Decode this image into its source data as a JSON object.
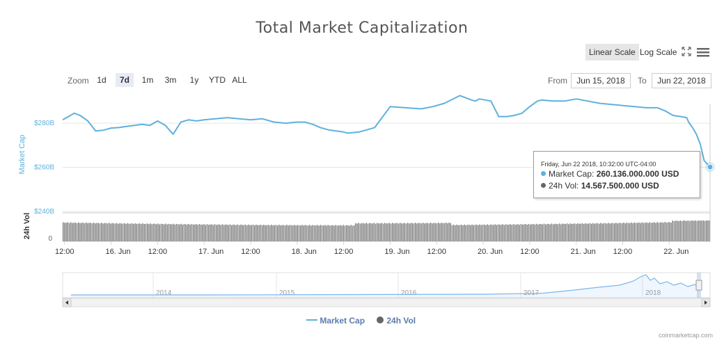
{
  "title": "Total Market Capitalization",
  "scale_buttons": {
    "linear": "Linear Scale",
    "log": "Log Scale",
    "active": "linear"
  },
  "zoom": {
    "label": "Zoom",
    "buttons": [
      "1d",
      "7d",
      "1m",
      "3m",
      "1y",
      "YTD",
      "ALL"
    ],
    "active": "7d"
  },
  "range": {
    "from_label": "From",
    "from_value": "Jun 15, 2018",
    "to_label": "To",
    "to_value": "Jun 22, 2018"
  },
  "tooltip": {
    "date": "Friday, Jun 22 2018, 10:32:00 UTC-04:00",
    "market_cap_label": "Market Cap:",
    "market_cap_value": "260.136.000.000 USD",
    "vol_label": "24h Vol:",
    "vol_value": "14.567.500.000 USD"
  },
  "legend": {
    "market_cap": "Market Cap",
    "vol": "24h Vol"
  },
  "credits": "coinmarketcap.com",
  "colors": {
    "market_cap": "#5eb1dd",
    "vol": "#666666",
    "navigator_line": "#7cb5ec",
    "grid": "#e6e6e6"
  },
  "icons": {
    "fullscreen": "fullscreen-icon",
    "menu": "hamburger-menu-icon"
  },
  "chart_data": {
    "type": "line",
    "title": "Total Market Capitalization",
    "x_start": "2018-06-15T11:30",
    "x_end": "2018-06-22T10:32",
    "x_ticks": [
      "12:00",
      "16. Jun",
      "12:00",
      "17. Jun",
      "12:00",
      "18. Jun",
      "12:00",
      "19. Jun",
      "12:00",
      "20. Jun",
      "12:00",
      "21. Jun",
      "12:00",
      "22. Jun"
    ],
    "y_axis": {
      "label": "Market Cap",
      "ticks": [
        "$240B",
        "$260B",
        "$280B"
      ],
      "ylim": [
        240,
        292
      ],
      "unit": "B USD"
    },
    "vol_axis": {
      "label": "24h Vol",
      "ticks": [
        "0"
      ]
    },
    "series": [
      {
        "name": "Market Cap",
        "x": [
          "2018-06-15T11:30",
          "2018-06-15T13:00",
          "2018-06-15T14:30",
          "2018-06-15T16:00",
          "2018-06-15T18:00",
          "2018-06-15T20:00",
          "2018-06-15T22:00",
          "2018-06-16T00:00",
          "2018-06-16T02:00",
          "2018-06-16T04:00",
          "2018-06-16T06:00",
          "2018-06-16T08:00",
          "2018-06-16T10:00",
          "2018-06-16T12:00",
          "2018-06-16T14:00",
          "2018-06-16T16:00",
          "2018-06-16T18:00",
          "2018-06-16T20:00",
          "2018-06-16T22:00",
          "2018-06-17T00:00",
          "2018-06-17T03:00",
          "2018-06-17T06:00",
          "2018-06-17T09:00",
          "2018-06-17T12:00",
          "2018-06-17T15:00",
          "2018-06-17T18:00",
          "2018-06-17T21:00",
          "2018-06-18T00:00",
          "2018-06-18T02:00",
          "2018-06-18T04:00",
          "2018-06-18T06:00",
          "2018-06-18T08:00",
          "2018-06-18T10:00",
          "2018-06-18T12:00",
          "2018-06-18T13:00",
          "2018-06-18T16:00",
          "2018-06-18T20:00",
          "2018-06-19T00:00",
          "2018-06-19T04:00",
          "2018-06-19T08:00",
          "2018-06-19T09:00",
          "2018-06-19T11:00",
          "2018-06-19T14:00",
          "2018-06-19T18:00",
          "2018-06-19T21:00",
          "2018-06-19T22:00",
          "2018-06-19T23:00",
          "2018-06-20T02:00",
          "2018-06-20T04:00",
          "2018-06-20T06:00",
          "2018-06-20T08:00",
          "2018-06-20T10:00",
          "2018-06-20T12:00",
          "2018-06-20T14:00",
          "2018-06-20T15:00",
          "2018-06-20T18:00",
          "2018-06-20T21:00",
          "2018-06-21T00:00",
          "2018-06-21T03:00",
          "2018-06-21T06:00",
          "2018-06-21T09:00",
          "2018-06-21T12:00",
          "2018-06-21T15:00",
          "2018-06-21T18:00",
          "2018-06-21T21:00",
          "2018-06-21T23:00",
          "2018-06-22T01:00",
          "2018-06-22T03:00",
          "2018-06-22T04:30",
          "2018-06-22T05:00",
          "2018-06-22T06:00",
          "2018-06-22T07:00",
          "2018-06-22T08:00",
          "2018-06-22T09:00",
          "2018-06-22T10:32"
        ],
        "y": [
          281.5,
          283.0,
          284.5,
          283.5,
          281.0,
          276.5,
          276.8,
          277.8,
          278.0,
          278.5,
          279.0,
          279.5,
          279.0,
          281.0,
          279.0,
          275.0,
          280.5,
          281.5,
          281.0,
          281.5,
          282.0,
          282.5,
          282.0,
          281.5,
          282.0,
          280.5,
          280.0,
          280.5,
          280.5,
          279.5,
          278.0,
          277.0,
          276.5,
          276.0,
          275.5,
          276.0,
          278.0,
          287.5,
          287.0,
          286.5,
          286.8,
          287.5,
          289.0,
          292.5,
          290.5,
          290.0,
          291.0,
          290.0,
          283.0,
          283.0,
          283.5,
          284.5,
          287.5,
          290.0,
          290.5,
          290.0,
          290.0,
          291.0,
          290.0,
          289.0,
          288.5,
          288.0,
          287.5,
          287.0,
          287.0,
          285.5,
          283.5,
          283.0,
          282.5,
          280.5,
          278.0,
          275.0,
          270.5,
          263.0,
          260.136
        ]
      },
      {
        "name": "24h Vol",
        "values": []
      }
    ],
    "navigator": {
      "x_ticks": [
        "2014",
        "2015",
        "2016",
        "2017",
        "2018"
      ],
      "range": "ALL"
    },
    "legend_position": "bottom-center",
    "grid": true
  }
}
